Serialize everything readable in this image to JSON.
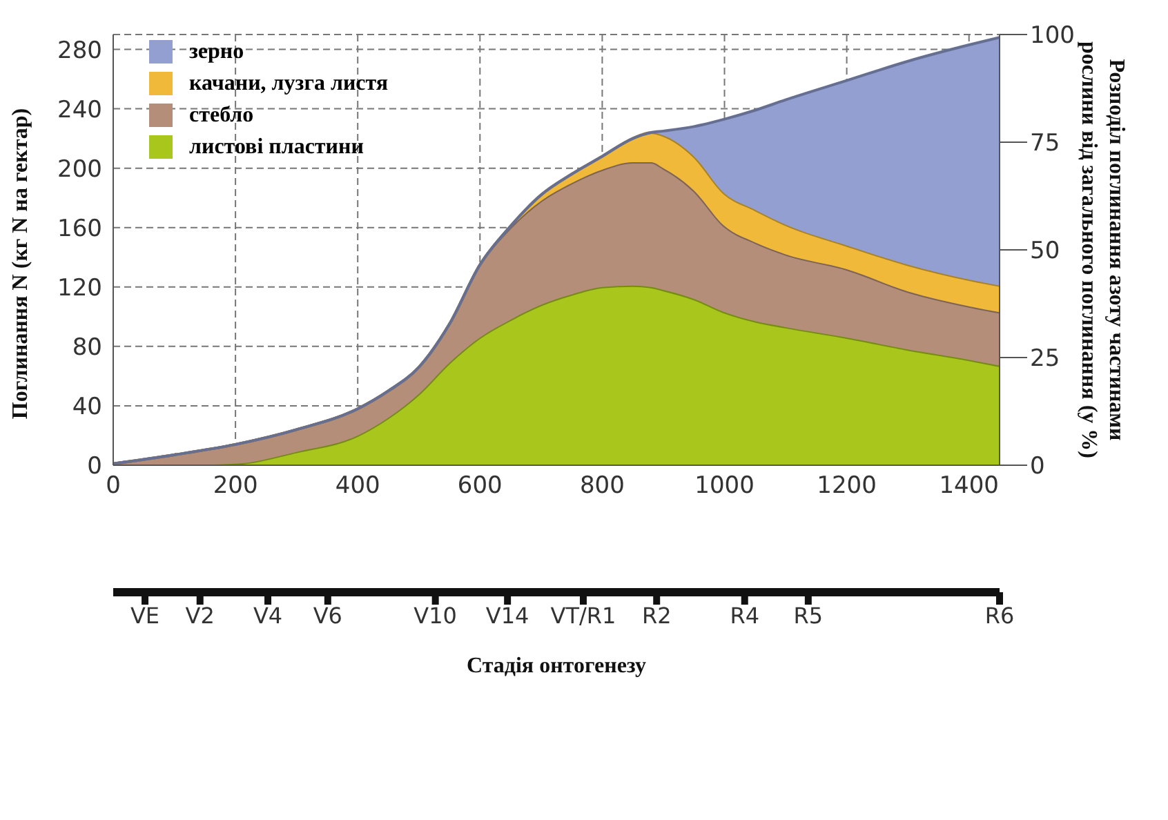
{
  "chart_data": {
    "type": "area",
    "stacked": true,
    "x": [
      0,
      100,
      200,
      300,
      400,
      450,
      500,
      550,
      600,
      650,
      700,
      750,
      800,
      850,
      880,
      900,
      950,
      1000,
      1050,
      1100,
      1200,
      1300,
      1400,
      1450
    ],
    "series": [
      {
        "name": "листові пластини",
        "color": "#a8c61c",
        "values": [
          0,
          0,
          1,
          9,
          20,
          32,
          48,
          69,
          86,
          98,
          108,
          115,
          120,
          121,
          120,
          118,
          112,
          103,
          97,
          93,
          86,
          78,
          71,
          67
        ]
      },
      {
        "name": "стебло",
        "color": "#b48e78",
        "values": [
          1,
          7,
          13,
          15,
          18,
          18,
          18,
          26,
          49,
          62,
          70,
          75,
          79,
          83,
          84,
          82,
          73,
          58,
          53,
          49,
          46,
          39,
          36,
          36
        ]
      },
      {
        "name": "качани, лузга листя",
        "color": "#f0b93a",
        "values": [
          0,
          0,
          0,
          0,
          0,
          0,
          0,
          0,
          0,
          1,
          4,
          6,
          9,
          16,
          20,
          22,
          23,
          22,
          22,
          20,
          16,
          18,
          18,
          18
        ]
      },
      {
        "name": "зерно",
        "color": "#929fd0",
        "values": [
          0,
          0,
          0,
          0,
          0,
          0,
          0,
          0,
          0,
          0,
          0,
          0,
          0,
          0,
          0,
          3,
          20,
          50,
          67,
          84,
          111,
          137,
          158,
          167
        ]
      }
    ],
    "xlim": [
      0,
      1450
    ],
    "xticks": [
      0,
      200,
      400,
      600,
      800,
      1000,
      1200,
      1400
    ],
    "ylim": [
      0,
      290
    ],
    "yticks": [
      0,
      40,
      80,
      120,
      160,
      200,
      240,
      280
    ],
    "y2lim": [
      0,
      100
    ],
    "y2ticks": [
      0,
      25,
      50,
      75,
      100
    ],
    "ref_lines": [
      {
        "axis": "x",
        "value": 52,
        "label": "VE"
      },
      {
        "axis": "x",
        "value": 142,
        "label": "V2"
      },
      {
        "axis": "x",
        "value": 253,
        "label": "V4"
      },
      {
        "axis": "x",
        "value": 351,
        "label": "V6"
      },
      {
        "axis": "x",
        "value": 527,
        "label": "V10"
      },
      {
        "axis": "x",
        "value": 645,
        "label": "V14"
      },
      {
        "axis": "x",
        "value": 769,
        "label": "VT/R1"
      },
      {
        "axis": "x",
        "value": 889,
        "label": "R2"
      },
      {
        "axis": "x",
        "value": 1033,
        "label": "R4"
      },
      {
        "axis": "x",
        "value": 1137,
        "label": "R5"
      },
      {
        "axis": "x",
        "value": 1450,
        "label": "R6"
      }
    ],
    "x2label": "Стадія онтогенезу",
    "ylabel": "Поглинання N (кг N на гектар)",
    "y2label": "Розподіл поглинання азоту частинами рослини від загального поглинання (у %)",
    "grid": true,
    "legend": "top left"
  }
}
